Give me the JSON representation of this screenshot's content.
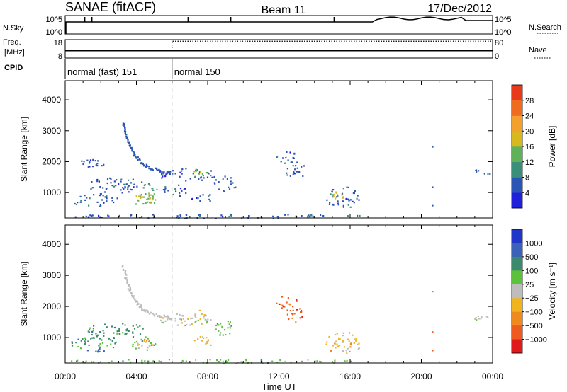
{
  "chart_data": {
    "type": "heatmap",
    "header": {
      "station": "SANAE (fitACF)",
      "beam": "Beam 11",
      "date": "17/Dec/2012"
    },
    "time_axis": {
      "ticks": [
        "00:00",
        "04:00",
        "08:00",
        "12:00",
        "16:00",
        "20:00",
        "00:00"
      ],
      "tick_hours": [
        0,
        4,
        8,
        12,
        16,
        20,
        24
      ],
      "range_hours": [
        0,
        24
      ],
      "label": "Time UT"
    },
    "status_panels": {
      "noise": {
        "left_label": "N.Sky",
        "left_top": "10^5",
        "left_bottom": "10^0",
        "right_top": "10^5",
        "right_bottom": "10^0",
        "right_label": "N.Search"
      },
      "freq": {
        "left_label_1": "Freq.",
        "left_label_2": "[MHz]",
        "left_top": "18",
        "left_bottom": "8",
        "right_top": "80",
        "right_bottom": "0",
        "right_label": "Nave",
        "freq_mhz": 12,
        "nave": [
          [
            0,
            33
          ],
          [
            6,
            73
          ],
          [
            24,
            73
          ]
        ]
      },
      "cpid": {
        "label": "CPID",
        "modes": [
          {
            "name": "normal (fast) 151",
            "start_h": 0,
            "end_h": 6
          },
          {
            "name": "normal 150",
            "start_h": 6,
            "end_h": 24
          }
        ]
      }
    },
    "panels": [
      {
        "id": "power",
        "ylabel": "Slant Range [km]",
        "yticks": [
          1000,
          2000,
          3000,
          4000
        ],
        "ylim": [
          180,
          4620
        ],
        "cbar_label": "Power [dB]",
        "cbar_ticks": [
          "4",
          "8",
          "12",
          "16",
          "20",
          "24",
          "28"
        ],
        "cbar_colors": [
          "#1f1fdc",
          "#2b55b5",
          "#3a8f7a",
          "#5fb25a",
          "#d7b81e",
          "#f3a12c",
          "#ef6c1e",
          "#e83a1a"
        ],
        "regions": [
          {
            "t": [
              0.8,
              2.2
            ],
            "r": [
              1750,
              2150
            ],
            "c": 1
          },
          {
            "t": [
              0.3,
              2.9
            ],
            "r": [
              550,
              1050
            ],
            "c": 1
          },
          {
            "t": [
              1.2,
              4.4
            ],
            "r": [
              1000,
              1500
            ],
            "c": 1
          },
          {
            "t": [
              3.5,
              5.2
            ],
            "r": [
              600,
              1050
            ],
            "c": 3
          },
          {
            "t": [
              4.0,
              5.0
            ],
            "r": [
              700,
              1000
            ],
            "c": 4
          },
          {
            "t": [
              4.3,
              5.6
            ],
            "r": [
              1050,
              1350
            ],
            "c": 2
          },
          {
            "t": [
              5.2,
              8.5
            ],
            "r": [
              1400,
              1800
            ],
            "c": 1
          },
          {
            "t": [
              7.2,
              7.9
            ],
            "r": [
              1550,
              1900
            ],
            "c": 3
          },
          {
            "t": [
              5.5,
              6.8
            ],
            "r": [
              900,
              1300
            ],
            "c": 1
          },
          {
            "t": [
              7.0,
              8.2
            ],
            "r": [
              650,
              1050
            ],
            "c": 1
          },
          {
            "t": [
              8.3,
              9.6
            ],
            "r": [
              1050,
              1550
            ],
            "c": 1
          },
          {
            "t": [
              11.8,
              13.0
            ],
            "r": [
              1950,
              2350
            ],
            "c": 1
          },
          {
            "t": [
              12.3,
              13.5
            ],
            "r": [
              1500,
              2000
            ],
            "c": 1
          },
          {
            "t": [
              14.6,
              16.6
            ],
            "r": [
              500,
              1200
            ],
            "c": 1
          },
          {
            "t": [
              15.0,
              15.8
            ],
            "r": [
              750,
              1100
            ],
            "c": 4
          },
          {
            "t": [
              22.8,
              24.0
            ],
            "r": [
              1550,
              1800
            ],
            "c": 1
          },
          {
            "t": [
              0.0,
              16.8
            ],
            "r": [
              180,
              320
            ],
            "c": 1
          }
        ],
        "streak": [
          {
            "t": 3.2,
            "r": 3300
          },
          {
            "t": 3.4,
            "r": 2900
          },
          {
            "t": 3.6,
            "r": 2500
          },
          {
            "t": 3.9,
            "r": 2200
          },
          {
            "t": 4.3,
            "r": 1950
          },
          {
            "t": 4.8,
            "r": 1800
          },
          {
            "t": 5.4,
            "r": 1700
          },
          {
            "t": 6.0,
            "r": 1650
          }
        ]
      },
      {
        "id": "velocity",
        "ylabel": "Slant Range [km]",
        "yticks": [
          1000,
          2000,
          3000,
          4000
        ],
        "ylim": [
          180,
          4620
        ],
        "cbar_label": "Velocity [m s⁻¹]",
        "cbar_ticks": [
          "1000",
          "500",
          "100",
          "25",
          "−25",
          "−100",
          "−500",
          "−1000"
        ],
        "cbar_colors": [
          "#1f36c8",
          "#3b62b8",
          "#3c8a6e",
          "#5cc23c",
          "#bdbdbd",
          "#f0b41e",
          "#ef8a1e",
          "#ef5a1e",
          "#e01a1a"
        ],
        "regions": [
          {
            "t": [
              0.3,
              2.9
            ],
            "r": [
              550,
              1050
            ],
            "c": 2
          },
          {
            "t": [
              1.2,
              4.4
            ],
            "r": [
              1000,
              1500
            ],
            "c": 2
          },
          {
            "t": [
              3.5,
              5.2
            ],
            "r": [
              600,
              1050
            ],
            "c": 3
          },
          {
            "t": [
              4.0,
              4.9
            ],
            "r": [
              650,
              950
            ],
            "c": 5
          },
          {
            "t": [
              5.2,
              8.5
            ],
            "r": [
              1400,
              1800
            ],
            "c": 4
          },
          {
            "t": [
              7.2,
              7.9
            ],
            "r": [
              1550,
              1900
            ],
            "c": 5
          },
          {
            "t": [
              7.0,
              8.2
            ],
            "r": [
              650,
              1050
            ],
            "c": 5
          },
          {
            "t": [
              8.3,
              9.6
            ],
            "r": [
              1050,
              1550
            ],
            "c": 3
          },
          {
            "t": [
              11.8,
              13.0
            ],
            "r": [
              1950,
              2350
            ],
            "c": 7
          },
          {
            "t": [
              12.3,
              13.5
            ],
            "r": [
              1500,
              2000
            ],
            "c": 7
          },
          {
            "t": [
              14.6,
              16.6
            ],
            "r": [
              500,
              1200
            ],
            "c": 5
          },
          {
            "t": [
              22.8,
              24.0
            ],
            "r": [
              1550,
              1800
            ],
            "c": 4
          },
          {
            "t": [
              0.0,
              16.8
            ],
            "r": [
              180,
              320
            ],
            "c": 3
          }
        ],
        "streak": [
          {
            "t": 3.2,
            "r": 3300
          },
          {
            "t": 3.4,
            "r": 2900
          },
          {
            "t": 3.6,
            "r": 2500
          },
          {
            "t": 3.9,
            "r": 2200
          },
          {
            "t": 4.3,
            "r": 1950
          },
          {
            "t": 4.8,
            "r": 1800
          },
          {
            "t": 5.4,
            "r": 1700
          },
          {
            "t": 6.0,
            "r": 1650
          }
        ]
      }
    ]
  }
}
